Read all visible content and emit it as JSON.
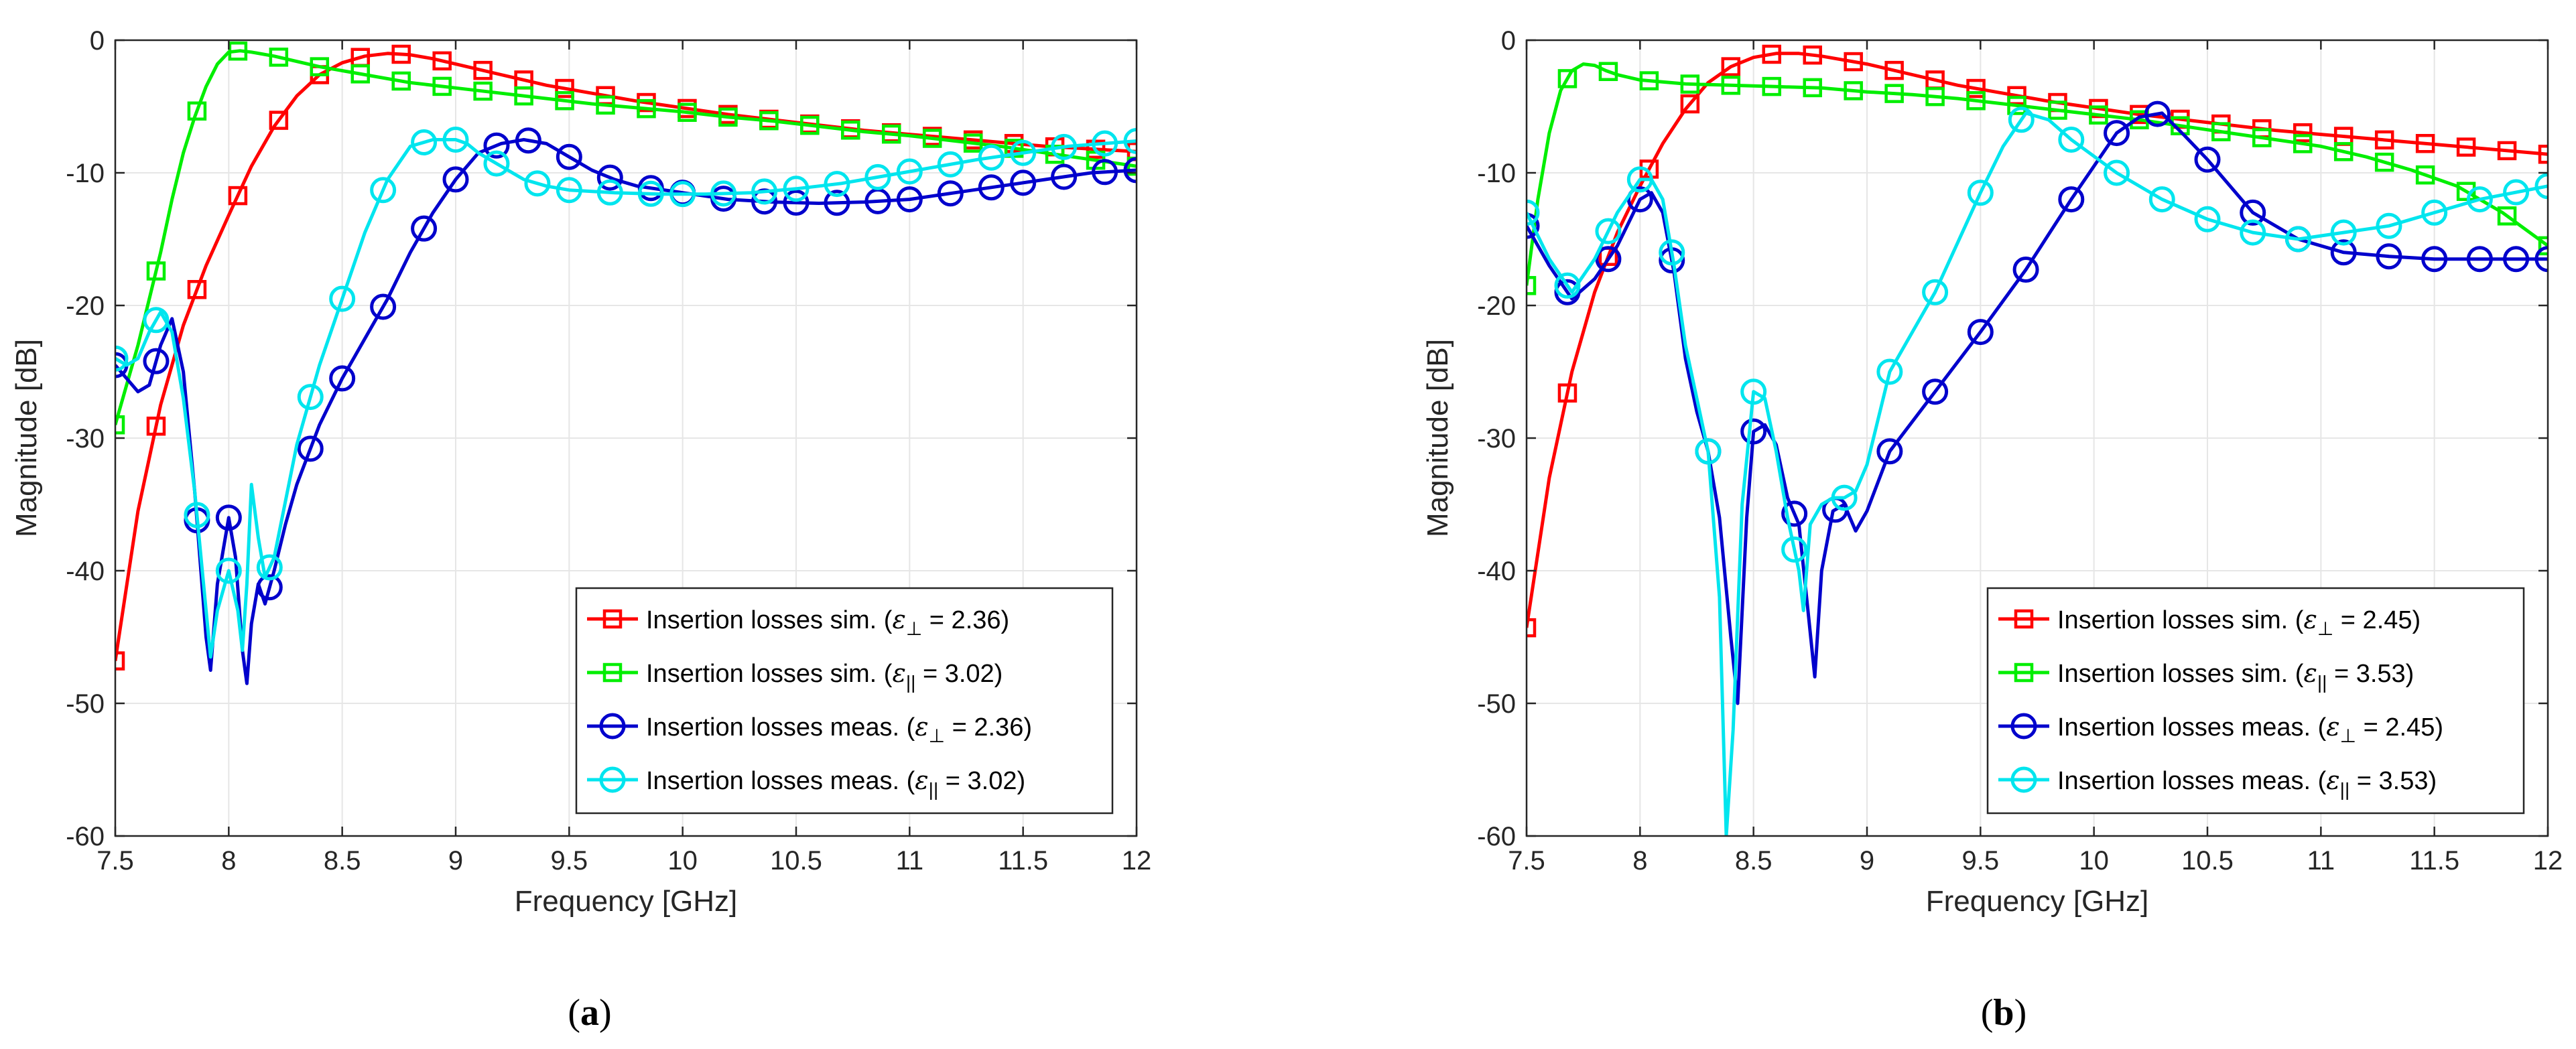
{
  "chart_data": [
    {
      "type": "line",
      "panel_label": {
        "open": "(",
        "letter": "a",
        "close": ")"
      },
      "xlabel": "Frequency [GHz]",
      "ylabel": "Magnitude [dB]",
      "xlim": [
        7.5,
        12
      ],
      "ylim": [
        -60,
        0
      ],
      "xticks": [
        7.5,
        8,
        8.5,
        9,
        9.5,
        10,
        10.5,
        11,
        11.5,
        12
      ],
      "xtick_labels": [
        "7.5",
        "8",
        "8.5",
        "9",
        "9.5",
        "10",
        "10.5",
        "11",
        "11.5",
        "12"
      ],
      "yticks": [
        0,
        -10,
        -20,
        -30,
        -40,
        -50,
        -60
      ],
      "ytick_labels": [
        "0",
        "-10",
        "-20",
        "-30",
        "-40",
        "-50",
        "-60"
      ],
      "grid": true,
      "legend_position": "bottom-right",
      "series": [
        {
          "name": "Insertion losses sim.",
          "legend_prefix": "Insertion losses sim. (",
          "legend_eps": "ε",
          "legend_sub": "⊥",
          "legend_value": " = 2.36)",
          "color": "#ff0000",
          "marker": "square",
          "x": [
            7.5,
            7.6,
            7.7,
            7.8,
            7.9,
            8.0,
            8.1,
            8.2,
            8.3,
            8.4,
            8.5,
            8.6,
            8.7,
            8.8,
            8.9,
            9.0,
            9.2,
            9.4,
            9.6,
            9.8,
            10.0,
            10.2,
            10.4,
            10.6,
            10.8,
            11.0,
            11.2,
            11.4,
            11.6,
            11.8,
            12.0
          ],
          "y": [
            -46.8,
            -35.5,
            -27.5,
            -21.5,
            -17.0,
            -13.2,
            -9.5,
            -6.5,
            -4.2,
            -2.6,
            -1.7,
            -1.2,
            -1.0,
            -1.1,
            -1.4,
            -1.8,
            -2.6,
            -3.4,
            -4.0,
            -4.6,
            -5.1,
            -5.6,
            -6.0,
            -6.4,
            -6.8,
            -7.1,
            -7.4,
            -7.7,
            -8.0,
            -8.2,
            -8.4
          ],
          "markers_x": [
            7.5,
            7.68,
            7.86,
            8.04,
            8.22,
            8.4,
            8.58,
            8.76,
            8.94,
            9.12,
            9.3,
            9.48,
            9.66,
            9.84,
            10.02,
            10.2,
            10.38,
            10.56,
            10.74,
            10.92,
            11.1,
            11.28,
            11.46,
            11.64,
            11.82,
            12.0
          ]
        },
        {
          "name": "Insertion losses sim.",
          "legend_prefix": "Insertion losses sim. (",
          "legend_eps": "ε",
          "legend_sub": "||",
          "legend_value": " = 3.02)",
          "color": "#00ee00",
          "marker": "square",
          "x": [
            7.5,
            7.55,
            7.6,
            7.65,
            7.7,
            7.75,
            7.8,
            7.85,
            7.9,
            7.95,
            8.0,
            8.05,
            8.1,
            8.2,
            8.3,
            8.4,
            8.6,
            8.8,
            9.0,
            9.2,
            9.4,
            9.6,
            9.8,
            10.0,
            10.2,
            10.4,
            10.6,
            10.8,
            11.0,
            11.2,
            11.4,
            11.6,
            11.8,
            12.0
          ],
          "y": [
            -29,
            -26,
            -23,
            -19.5,
            -16,
            -12,
            -8.5,
            -5.8,
            -3.5,
            -1.8,
            -0.9,
            -0.8,
            -0.9,
            -1.2,
            -1.6,
            -2.0,
            -2.6,
            -3.2,
            -3.6,
            -4.0,
            -4.4,
            -4.8,
            -5.1,
            -5.4,
            -5.8,
            -6.1,
            -6.5,
            -6.9,
            -7.2,
            -7.6,
            -8.0,
            -8.5,
            -9.0,
            -9.5
          ],
          "markers_x": [
            7.5,
            7.68,
            7.86,
            8.04,
            8.22,
            8.4,
            8.58,
            8.76,
            8.94,
            9.12,
            9.3,
            9.48,
            9.66,
            9.84,
            10.02,
            10.2,
            10.38,
            10.56,
            10.74,
            10.92,
            11.1,
            11.28,
            11.46,
            11.64,
            11.82,
            12.0
          ]
        },
        {
          "name": "Insertion losses meas.",
          "legend_prefix": "Insertion losses meas. (",
          "legend_eps": "ε",
          "legend_sub": "⊥",
          "legend_value": " = 2.36)",
          "color": "#0000cc",
          "marker": "circle",
          "x": [
            7.5,
            7.55,
            7.6,
            7.65,
            7.7,
            7.75,
            7.8,
            7.85,
            7.9,
            7.92,
            7.95,
            8.0,
            8.03,
            8.06,
            8.08,
            8.1,
            8.13,
            8.16,
            8.2,
            8.25,
            8.3,
            8.4,
            8.5,
            8.6,
            8.7,
            8.8,
            8.9,
            9.0,
            9.1,
            9.2,
            9.3,
            9.4,
            9.5,
            9.6,
            9.7,
            9.8,
            10.0,
            10.2,
            10.4,
            10.6,
            10.8,
            11.0,
            11.2,
            11.4,
            11.6,
            11.8,
            12.0
          ],
          "y": [
            -24.5,
            -25.5,
            -26.5,
            -26.0,
            -23.0,
            -21.0,
            -25.0,
            -34.0,
            -45.0,
            -47.5,
            -41.0,
            -36.0,
            -39.0,
            -46.0,
            -48.5,
            -44.0,
            -41.0,
            -42.5,
            -40.0,
            -36.5,
            -33.5,
            -29.0,
            -25.5,
            -22.5,
            -19.5,
            -16.0,
            -13.0,
            -10.5,
            -8.5,
            -7.8,
            -7.5,
            -7.8,
            -8.8,
            -9.8,
            -10.5,
            -11.0,
            -11.5,
            -12.0,
            -12.2,
            -12.3,
            -12.2,
            -12.0,
            -11.5,
            -11.0,
            -10.5,
            -10.0,
            -9.8
          ],
          "markers_x": [
            7.5,
            7.68,
            7.86,
            8.0,
            8.18,
            8.36,
            8.5,
            8.68,
            8.86,
            9.0,
            9.18,
            9.32,
            9.5,
            9.68,
            9.86,
            10.0,
            10.18,
            10.36,
            10.5,
            10.68,
            10.86,
            11.0,
            11.18,
            11.36,
            11.5,
            11.68,
            11.86,
            12.0
          ]
        },
        {
          "name": "Insertion losses meas.",
          "legend_prefix": "Insertion losses meas. (",
          "legend_eps": "ε",
          "legend_sub": "||",
          "legend_value": " = 3.02)",
          "color": "#00e5ee",
          "marker": "circle",
          "x": [
            7.5,
            7.55,
            7.6,
            7.65,
            7.7,
            7.75,
            7.8,
            7.85,
            7.9,
            7.92,
            7.95,
            8.0,
            8.04,
            8.06,
            8.08,
            8.1,
            8.13,
            8.16,
            8.2,
            8.3,
            8.4,
            8.5,
            8.6,
            8.7,
            8.8,
            8.9,
            9.0,
            9.05,
            9.1,
            9.2,
            9.3,
            9.4,
            9.5,
            9.7,
            9.9,
            10.1,
            10.3,
            10.5,
            10.7,
            10.9,
            11.1,
            11.3,
            11.5,
            11.7,
            12.0
          ],
          "y": [
            -24.0,
            -24.5,
            -24.0,
            -22.0,
            -20.5,
            -22.0,
            -27.0,
            -34.0,
            -43.0,
            -46.5,
            -43.0,
            -40.0,
            -43.0,
            -46.0,
            -41.0,
            -33.5,
            -37.5,
            -40.5,
            -39.0,
            -30.5,
            -24.5,
            -19.5,
            -14.5,
            -10.5,
            -8.0,
            -7.5,
            -7.5,
            -7.8,
            -8.5,
            -9.5,
            -10.5,
            -11.0,
            -11.3,
            -11.5,
            -11.6,
            -11.6,
            -11.5,
            -11.2,
            -10.8,
            -10.2,
            -9.6,
            -9.0,
            -8.5,
            -8.0,
            -7.6
          ],
          "markers_x": [
            7.5,
            7.68,
            7.86,
            8.0,
            8.18,
            8.36,
            8.5,
            8.68,
            8.86,
            9.0,
            9.18,
            9.36,
            9.5,
            9.68,
            9.86,
            10.0,
            10.18,
            10.36,
            10.5,
            10.68,
            10.86,
            11.0,
            11.18,
            11.36,
            11.5,
            11.68,
            11.86,
            12.0
          ]
        }
      ]
    },
    {
      "type": "line",
      "panel_label": {
        "open": "(",
        "letter": "b",
        "close": ")"
      },
      "xlabel": "Frequency [GHz]",
      "ylabel": "Magnitude [dB]",
      "xlim": [
        7.5,
        12
      ],
      "ylim": [
        -60,
        0
      ],
      "xticks": [
        7.5,
        8,
        8.5,
        9,
        9.5,
        10,
        10.5,
        11,
        11.5,
        12
      ],
      "xtick_labels": [
        "7.5",
        "8",
        "8.5",
        "9",
        "9.5",
        "10",
        "10.5",
        "11",
        "11.5",
        "12"
      ],
      "yticks": [
        0,
        -10,
        -20,
        -30,
        -40,
        -50,
        -60
      ],
      "ytick_labels": [
        "0",
        "-10",
        "-20",
        "-30",
        "-40",
        "-50",
        "-60"
      ],
      "grid": true,
      "legend_position": "bottom-right",
      "series": [
        {
          "name": "Insertion losses sim.",
          "legend_prefix": "Insertion losses sim. (",
          "legend_eps": "ε",
          "legend_sub": "⊥",
          "legend_value": " = 2.45)",
          "color": "#ff0000",
          "marker": "square",
          "x": [
            7.5,
            7.6,
            7.7,
            7.8,
            7.9,
            8.0,
            8.1,
            8.2,
            8.3,
            8.4,
            8.5,
            8.6,
            8.7,
            8.8,
            9.0,
            9.2,
            9.4,
            9.6,
            9.8,
            10.0,
            10.2,
            10.4,
            10.6,
            10.8,
            11.0,
            11.2,
            11.4,
            11.6,
            11.8,
            12.0
          ],
          "y": [
            -44.3,
            -33.0,
            -25.0,
            -19.0,
            -14.5,
            -11.0,
            -7.8,
            -5.2,
            -3.2,
            -2.0,
            -1.3,
            -1.0,
            -1.0,
            -1.2,
            -1.8,
            -2.6,
            -3.4,
            -4.0,
            -4.6,
            -5.1,
            -5.6,
            -6.0,
            -6.4,
            -6.8,
            -7.1,
            -7.4,
            -7.7,
            -8.0,
            -8.3,
            -8.6
          ],
          "markers_x": [
            7.5,
            7.68,
            7.86,
            8.04,
            8.22,
            8.4,
            8.58,
            8.76,
            8.94,
            9.12,
            9.3,
            9.48,
            9.66,
            9.84,
            10.02,
            10.2,
            10.38,
            10.56,
            10.74,
            10.92,
            11.1,
            11.28,
            11.46,
            11.64,
            11.82,
            12.0
          ]
        },
        {
          "name": "Insertion losses sim.",
          "legend_prefix": "Insertion losses sim. (",
          "legend_eps": "ε",
          "legend_sub": "||",
          "legend_value": " = 3.53)",
          "color": "#00ee00",
          "marker": "square",
          "x": [
            7.5,
            7.55,
            7.6,
            7.65,
            7.7,
            7.75,
            7.8,
            7.85,
            7.9,
            8.0,
            8.2,
            8.4,
            8.6,
            8.8,
            9.0,
            9.2,
            9.4,
            9.6,
            9.8,
            10.0,
            10.2,
            10.4,
            10.6,
            10.8,
            11.0,
            11.2,
            11.4,
            11.6,
            11.8,
            12.0
          ],
          "y": [
            -18.5,
            -12.0,
            -7.0,
            -3.8,
            -2.3,
            -1.8,
            -1.9,
            -2.3,
            -2.6,
            -3.0,
            -3.3,
            -3.4,
            -3.5,
            -3.6,
            -3.9,
            -4.1,
            -4.4,
            -4.8,
            -5.2,
            -5.6,
            -6.0,
            -6.5,
            -7.0,
            -7.5,
            -8.0,
            -8.8,
            -9.8,
            -11.0,
            -13.0,
            -15.5
          ],
          "markers_x": [
            7.5,
            7.68,
            7.86,
            8.04,
            8.22,
            8.4,
            8.58,
            8.76,
            8.94,
            9.12,
            9.3,
            9.48,
            9.66,
            9.84,
            10.02,
            10.2,
            10.38,
            10.56,
            10.74,
            10.92,
            11.1,
            11.28,
            11.46,
            11.64,
            11.82,
            12.0
          ]
        },
        {
          "name": "Insertion losses meas.",
          "legend_prefix": "Insertion losses meas. (",
          "legend_eps": "ε",
          "legend_sub": "⊥",
          "legend_value": " = 2.45)",
          "color": "#0000cc",
          "marker": "circle",
          "x": [
            7.5,
            7.6,
            7.7,
            7.8,
            7.9,
            8.0,
            8.05,
            8.1,
            8.15,
            8.2,
            8.25,
            8.3,
            8.35,
            8.4,
            8.43,
            8.47,
            8.5,
            8.55,
            8.6,
            8.65,
            8.7,
            8.74,
            8.77,
            8.8,
            8.85,
            8.9,
            8.95,
            9.0,
            9.1,
            9.3,
            9.5,
            9.7,
            9.9,
            10.1,
            10.2,
            10.3,
            10.4,
            10.5,
            10.7,
            10.9,
            11.1,
            11.3,
            11.5,
            11.7,
            12.0
          ],
          "y": [
            -14.0,
            -17.0,
            -19.5,
            -18.0,
            -15.5,
            -12.0,
            -11.5,
            -13.0,
            -17.5,
            -24.0,
            -28.0,
            -31.0,
            -36.0,
            -45.0,
            -50.0,
            -36.0,
            -29.5,
            -29.0,
            -30.5,
            -34.5,
            -36.5,
            -43.0,
            -48.0,
            -40.0,
            -35.5,
            -35.0,
            -37.0,
            -35.5,
            -31.0,
            -26.5,
            -22.0,
            -17.3,
            -12.0,
            -7.0,
            -5.8,
            -5.5,
            -7.2,
            -9.0,
            -13.0,
            -15.0,
            -16.0,
            -16.3,
            -16.5,
            -16.5,
            -16.5
          ],
          "markers_x": [
            7.5,
            7.68,
            7.86,
            8.0,
            8.14,
            8.3,
            8.5,
            8.68,
            8.86,
            9.1,
            9.3,
            9.5,
            9.7,
            9.9,
            10.1,
            10.28,
            10.5,
            10.7,
            10.9,
            11.1,
            11.3,
            11.5,
            11.7,
            11.86,
            12.0
          ]
        },
        {
          "name": "Insertion losses meas.",
          "legend_prefix": "Insertion losses meas. (",
          "legend_eps": "ε",
          "legend_sub": "||",
          "legend_value": " = 3.53)",
          "color": "#00e5ee",
          "marker": "circle",
          "x": [
            7.5,
            7.6,
            7.7,
            7.8,
            7.9,
            8.0,
            8.05,
            8.1,
            8.15,
            8.2,
            8.25,
            8.3,
            8.35,
            8.38,
            8.41,
            8.45,
            8.5,
            8.55,
            8.6,
            8.65,
            8.7,
            8.72,
            8.75,
            8.8,
            8.85,
            8.9,
            8.95,
            9.0,
            9.1,
            9.3,
            9.5,
            9.6,
            9.7,
            9.8,
            9.9,
            10.1,
            10.3,
            10.5,
            10.7,
            10.9,
            11.1,
            11.3,
            11.5,
            11.7,
            12.0
          ],
          "y": [
            -13.0,
            -16.5,
            -19.0,
            -16.5,
            -13.0,
            -10.5,
            -10.5,
            -12.0,
            -17.0,
            -23.0,
            -27.0,
            -31.0,
            -42.0,
            -60.0,
            -52.0,
            -35.0,
            -26.5,
            -27.0,
            -31.0,
            -36.0,
            -40.0,
            -43.0,
            -36.5,
            -35.0,
            -34.5,
            -34.5,
            -34.0,
            -32.0,
            -25.0,
            -19.0,
            -11.5,
            -8.0,
            -5.5,
            -6.0,
            -7.5,
            -10.0,
            -12.0,
            -13.5,
            -14.5,
            -15.0,
            -14.5,
            -14.0,
            -13.0,
            -12.0,
            -11.0
          ],
          "markers_x": [
            7.5,
            7.68,
            7.86,
            8.0,
            8.14,
            8.3,
            8.5,
            8.68,
            8.9,
            9.1,
            9.3,
            9.5,
            9.68,
            9.9,
            10.1,
            10.3,
            10.5,
            10.7,
            10.9,
            11.1,
            11.3,
            11.5,
            11.7,
            11.86,
            12.0
          ]
        }
      ]
    }
  ]
}
